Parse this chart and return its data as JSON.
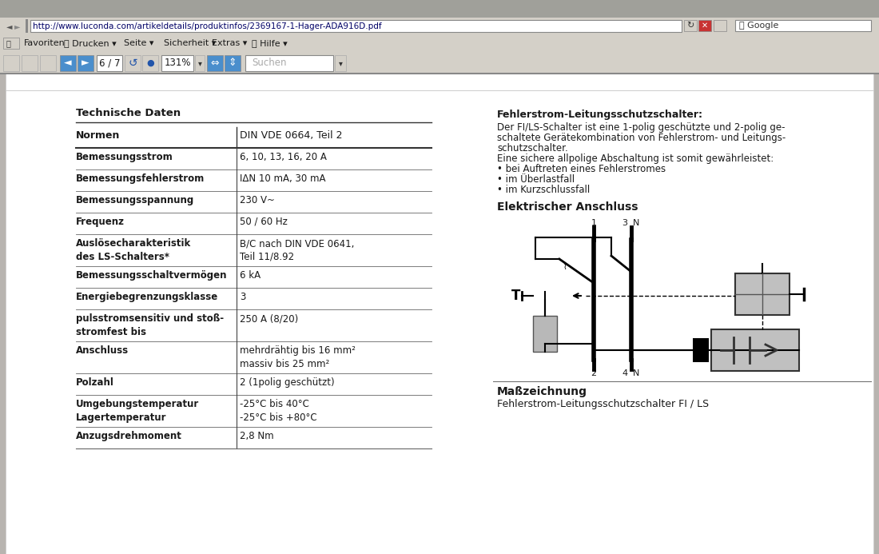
{
  "browser_bg": "#b8b4b0",
  "toolbar_bg": "#d4d0c8",
  "page_bg": "#ffffff",
  "url": "http://www.luconda.com/artikeldetails/produktinfos/2369167-1-Hager-ADA916D.pdf",
  "page_counter": "6 / 7",
  "zoom_level": "131%",
  "search_placeholder": "Suchen",
  "table_header": "Technische Daten",
  "table_rows": [
    [
      "Normen",
      "DIN VDE 0664, Teil 2"
    ],
    [
      "Bemessungsstrom",
      "6, 10, 13, 16, 20 A"
    ],
    [
      "Bemessungsfehlerstrom",
      "IΔN 10 mA, 30 mA"
    ],
    [
      "Bemessungsspannung",
      "230 V~"
    ],
    [
      "Frequenz",
      "50 / 60 Hz"
    ],
    [
      "Auslösecharakteristik\ndes LS-Schalters*",
      "B/C nach DIN VDE 0641,\nTeil 11/8.92"
    ],
    [
      "Bemessungsschaltvermögen",
      "6 kA"
    ],
    [
      "Energiebegrenzungsklasse",
      "3"
    ],
    [
      "pulsstromsensitiv und stoß-\nstromfest bis",
      "250 A (8/20)"
    ],
    [
      "Anschluss",
      "mehrdrähtig bis 16 mm²\nmassiv bis 25 mm²"
    ],
    [
      "Polzahl",
      "2 (1polig geschützt)"
    ],
    [
      "Umgebungstemperatur\nLagertemperatur",
      "-25°C bis 40°C\n-25°C bis +80°C"
    ],
    [
      "Anzugsdrehmoment",
      "2,8 Nm"
    ]
  ],
  "right_title": "Fehlerstrom-Leitungsschutzschalter:",
  "right_text_lines": [
    "Der FI/LS-Schalter ist eine 1-polig geschützte und 2-polig ge-",
    "schaltete Gerätekombination von Fehlerstrom- und Leitungs-",
    "schutzschalter.",
    "Eine sichere allpolige Abschaltung ist somit gewährleistet:",
    "• bei Auftreten eines Fehlerstromes",
    "• im Überlastfall",
    "• im Kurzschlussfall"
  ],
  "circuit_title": "Elektrischer Anschluss",
  "bottom_title": "Maßzeichnung",
  "bottom_subtitle": "Fehlerstrom-Leitungsschutzschalter FI / LS"
}
